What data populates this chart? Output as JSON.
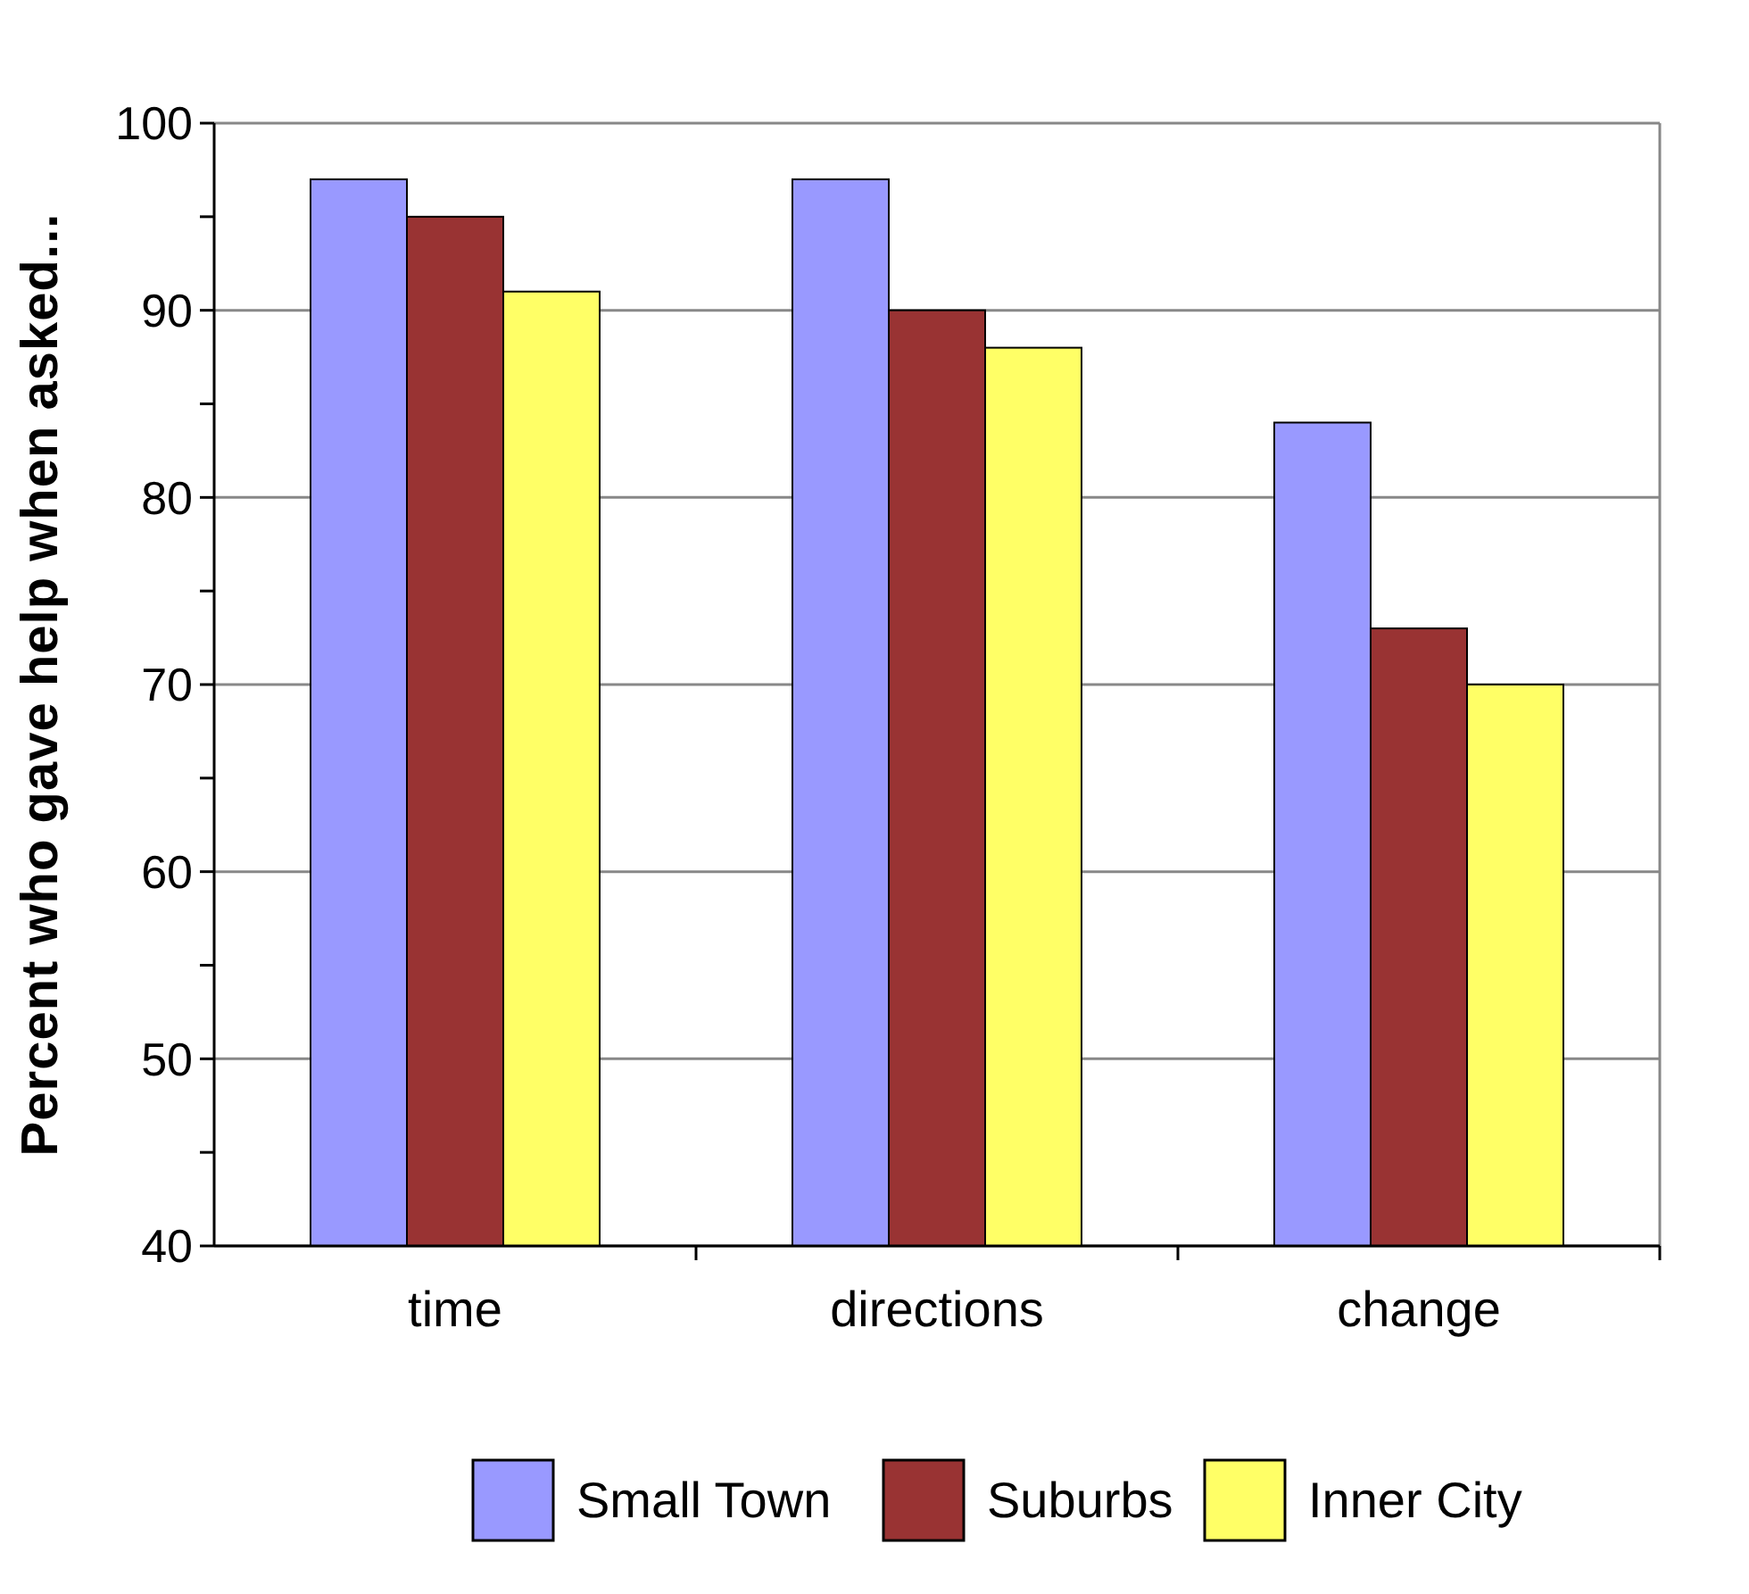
{
  "chart_data": {
    "type": "bar",
    "ylabel": "Percent who gave help when asked...",
    "categories": [
      "time",
      "directions",
      "change"
    ],
    "series": [
      {
        "name": "Small Town",
        "color": "#9999ff",
        "values": [
          97,
          97,
          84
        ]
      },
      {
        "name": "Suburbs",
        "color": "#993333",
        "values": [
          95,
          90,
          73
        ]
      },
      {
        "name": "Inner City",
        "color": "#ffff66",
        "values": [
          91,
          88,
          70
        ]
      }
    ],
    "ylim": [
      40,
      100
    ],
    "yticks": [
      40,
      {
        "value": 45,
        "label": null
      },
      50,
      {
        "value": 55,
        "label": null
      },
      60,
      {
        "value": 65,
        "label": null
      },
      70,
      {
        "value": 75,
        "label": null
      },
      80,
      {
        "value": 85,
        "label": null
      },
      90,
      {
        "value": 95,
        "label": null
      },
      100
    ],
    "grid": "y",
    "legend": "bottom"
  }
}
